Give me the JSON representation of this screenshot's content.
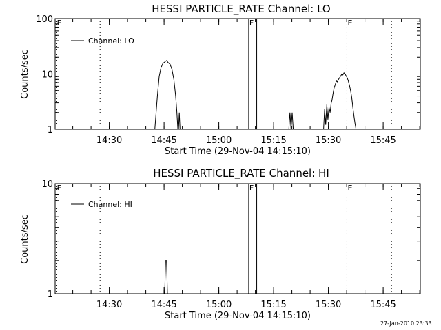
{
  "chart_data": [
    {
      "type": "line",
      "title": "HESSI PARTICLE_RATE Channel: LO",
      "xlabel": "Start Time (29-Nov-04 14:15:10)",
      "ylabel": "Counts/sec",
      "yscale": "log",
      "ylim": [
        1,
        100
      ],
      "yticks": [
        {
          "v": 1,
          "label": "1"
        },
        {
          "v": 10,
          "label": "10"
        },
        {
          "v": 100,
          "label": "100"
        }
      ],
      "xlim_minutes": [
        0,
        100
      ],
      "xticks": [
        {
          "t": 14.83,
          "label": "14:30"
        },
        {
          "t": 29.83,
          "label": "14:45"
        },
        {
          "t": 44.83,
          "label": "15:00"
        },
        {
          "t": 59.83,
          "label": "15:15"
        },
        {
          "t": 74.83,
          "label": "15:30"
        },
        {
          "t": 89.83,
          "label": "15:45"
        }
      ],
      "legend": {
        "label": "Channel: LO",
        "position": "top-left"
      },
      "markers": [
        {
          "t": 0.3,
          "label": "E",
          "style": "dotted"
        },
        {
          "t": 12.3,
          "label": "",
          "style": "dotted"
        },
        {
          "t": 53.0,
          "label": "F",
          "style": "solid"
        },
        {
          "t": 55.2,
          "label": "",
          "style": "solid"
        },
        {
          "t": 79.9,
          "label": "E",
          "style": "dotted"
        },
        {
          "t": 92.1,
          "label": "",
          "style": "dotted"
        }
      ],
      "series": [
        {
          "name": "Channel: LO",
          "segments": [
            [
              [
                27.3,
                1.0
              ],
              [
                28.0,
                4.0
              ],
              [
                28.5,
                9.0
              ],
              [
                29.0,
                13.0
              ],
              [
                29.5,
                15.5
              ],
              [
                30.0,
                16.5
              ],
              [
                30.5,
                17.5
              ],
              [
                31.0,
                16.0
              ],
              [
                31.5,
                15.0
              ],
              [
                32.0,
                12.0
              ],
              [
                32.5,
                8.0
              ],
              [
                33.0,
                4.0
              ],
              [
                33.3,
                2.2
              ],
              [
                33.6,
                1.0
              ]
            ],
            [
              [
                33.8,
                1.0
              ],
              [
                34.0,
                2.0
              ],
              [
                34.2,
                1.0
              ]
            ],
            [
              [
                64.0,
                1.0
              ],
              [
                64.3,
                2.0
              ],
              [
                64.6,
                1.0
              ],
              [
                64.9,
                2.0
              ],
              [
                65.2,
                1.0
              ]
            ],
            [
              [
                73.5,
                1.0
              ],
              [
                73.8,
                2.3
              ],
              [
                74.1,
                1.2
              ],
              [
                74.4,
                2.8
              ],
              [
                74.7,
                1.5
              ],
              [
                75.0,
                2.5
              ],
              [
                75.3,
                2.0
              ],
              [
                75.6,
                3.0
              ],
              [
                75.8,
                3.3
              ],
              [
                76.1,
                4.4
              ],
              [
                76.4,
                5.6
              ],
              [
                76.7,
                6.4
              ],
              [
                77.0,
                7.5
              ],
              [
                77.3,
                7.2
              ],
              [
                77.6,
                8.0
              ],
              [
                77.9,
                8.6
              ],
              [
                78.2,
                9.2
              ],
              [
                78.5,
                10.0
              ],
              [
                78.8,
                9.6
              ],
              [
                79.1,
                10.5
              ],
              [
                79.4,
                10.0
              ],
              [
                79.7,
                9.2
              ],
              [
                80.0,
                8.5
              ],
              [
                80.3,
                7.4
              ],
              [
                80.6,
                6.2
              ],
              [
                80.9,
                5.0
              ],
              [
                81.2,
                3.8
              ],
              [
                81.5,
                2.6
              ],
              [
                81.8,
                1.8
              ],
              [
                82.1,
                1.3
              ],
              [
                82.4,
                1.0
              ]
            ]
          ]
        }
      ]
    },
    {
      "type": "line",
      "title": "HESSI PARTICLE_RATE Channel: HI",
      "xlabel": "Start Time (29-Nov-04 14:15:10)",
      "ylabel": "Counts/sec",
      "yscale": "log",
      "ylim": [
        1,
        10
      ],
      "yticks": [
        {
          "v": 1,
          "label": "1"
        },
        {
          "v": 10,
          "label": "10"
        }
      ],
      "xlim_minutes": [
        0,
        100
      ],
      "xticks": [
        {
          "t": 14.83,
          "label": "14:30"
        },
        {
          "t": 29.83,
          "label": "14:45"
        },
        {
          "t": 44.83,
          "label": "15:00"
        },
        {
          "t": 59.83,
          "label": "15:15"
        },
        {
          "t": 74.83,
          "label": "15:30"
        },
        {
          "t": 89.83,
          "label": "15:45"
        }
      ],
      "legend": {
        "label": "Channel: HI",
        "position": "top-left"
      },
      "markers": [
        {
          "t": 0.3,
          "label": "E",
          "style": "dotted"
        },
        {
          "t": 12.3,
          "label": "",
          "style": "dotted"
        },
        {
          "t": 53.0,
          "label": "F",
          "style": "solid"
        },
        {
          "t": 55.2,
          "label": "",
          "style": "solid"
        },
        {
          "t": 79.9,
          "label": "E",
          "style": "dotted"
        },
        {
          "t": 92.1,
          "label": "",
          "style": "dotted"
        }
      ],
      "series": [
        {
          "name": "Channel: HI",
          "segments": [
            [
              [
                30.0,
                1.0
              ],
              [
                30.25,
                2.0
              ],
              [
                30.5,
                2.0
              ],
              [
                30.75,
                1.0
              ]
            ]
          ]
        }
      ]
    }
  ],
  "footer": {
    "timestamp": "27-Jan-2010 23:33"
  }
}
